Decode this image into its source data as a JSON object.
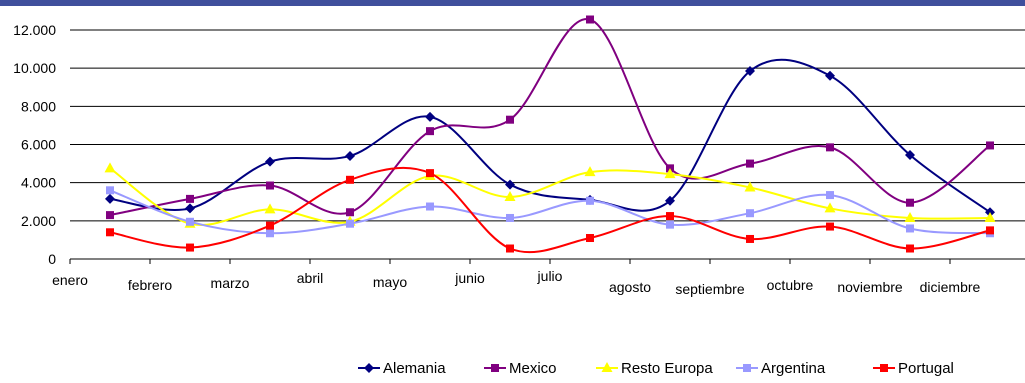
{
  "chart_data": {
    "type": "line",
    "title": "",
    "xlabel": "",
    "ylabel": "",
    "categories": [
      "enero",
      "febrero",
      "marzo",
      "abril",
      "mayo",
      "junio",
      "julio",
      "agosto",
      "septiembre",
      "octubre",
      "noviembre",
      "diciembre"
    ],
    "y_ticks": [
      "0",
      "2.000",
      "4.000",
      "6.000",
      "8.000",
      "10.000",
      "12.000"
    ],
    "y_tick_values": [
      0,
      2000,
      4000,
      6000,
      8000,
      10000,
      12000
    ],
    "ylim": [
      0,
      12000
    ],
    "grid": true,
    "legend_position": "bottom-right",
    "smooth": true,
    "series": [
      {
        "name": "Alemania",
        "color": "#000080",
        "marker": "diamond",
        "values": [
          3150,
          2650,
          5100,
          5400,
          7450,
          3900,
          3100,
          3050,
          9850,
          9600,
          5450,
          2450
        ]
      },
      {
        "name": "Mexico",
        "color": "#800080",
        "marker": "square",
        "values": [
          2300,
          3150,
          3850,
          2450,
          6700,
          7300,
          12550,
          4750,
          5000,
          5850,
          2950,
          5950
        ]
      },
      {
        "name": "Resto Europa",
        "color": "#ffff00",
        "marker": "triangle",
        "values": [
          4750,
          1850,
          2600,
          1950,
          4350,
          3250,
          4550,
          4450,
          3750,
          2650,
          2150,
          2150
        ]
      },
      {
        "name": "Argentina",
        "color": "#9999ff",
        "marker": "square",
        "values": [
          3600,
          1950,
          1350,
          1850,
          2750,
          2150,
          3050,
          1800,
          2400,
          3350,
          1600,
          1350
        ]
      },
      {
        "name": "Portugal",
        "color": "#ff0000",
        "marker": "square",
        "values": [
          1400,
          600,
          1750,
          4150,
          4500,
          550,
          1100,
          2250,
          1050,
          1700,
          550,
          1500
        ]
      }
    ]
  }
}
